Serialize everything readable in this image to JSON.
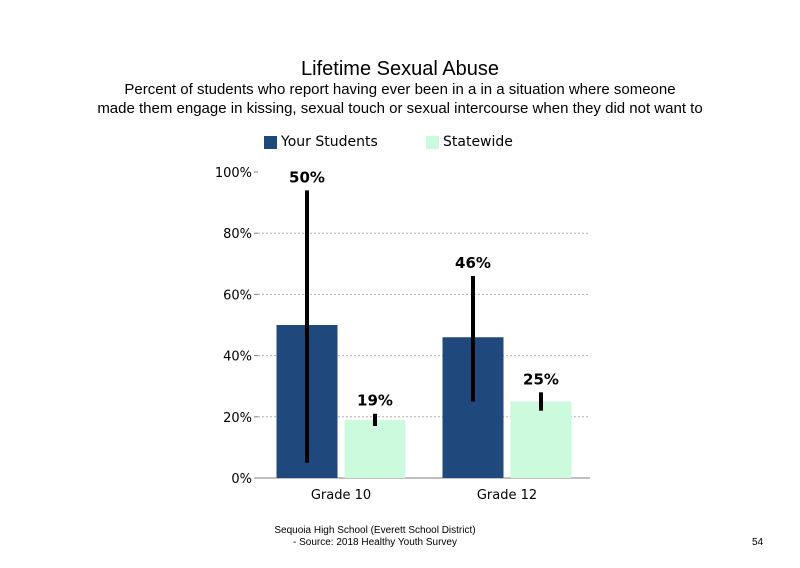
{
  "title": "Lifetime Sexual  Abuse",
  "subtitle_line1": "Percent of students who report having ever been in a in a situation where someone",
  "subtitle_line2": "made them engage in kissing, sexual touch or sexual intercourse when they did not want to",
  "legend": [
    {
      "label": "Your Students",
      "color": "#1f497d"
    },
    {
      "label": "Statewide",
      "color": "#ccfadc"
    }
  ],
  "footer_line1": "Sequoia High School (Everett School District)",
  "footer_line2": "- Source: 2018 Healthy Youth Survey",
  "page_number": "54",
  "chart_data": {
    "type": "bar",
    "categories": [
      "Grade 10",
      "Grade 12"
    ],
    "series": [
      {
        "name": "Your Students",
        "color": "#1f497d",
        "values": [
          50,
          46
        ],
        "labels": [
          "50%",
          "46%"
        ],
        "error_low": [
          5,
          25
        ],
        "error_high": [
          94,
          66
        ]
      },
      {
        "name": "Statewide",
        "color": "#ccfadc",
        "values": [
          19,
          25
        ],
        "labels": [
          "19%",
          "25%"
        ],
        "error_low": [
          17,
          22
        ],
        "error_high": [
          21,
          28
        ]
      }
    ],
    "ylim": [
      0,
      100
    ],
    "yticks": [
      "0%",
      "20%",
      "40%",
      "60%",
      "80%",
      "100%"
    ],
    "grid": true
  }
}
